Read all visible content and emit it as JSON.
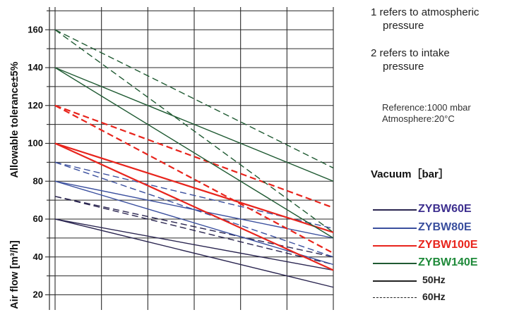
{
  "chart_data": {
    "type": "line",
    "ylabel_top": "Allowable tolerance±5%",
    "ylabel_bottom": "Air flow [m³/h]",
    "yticks": [
      20,
      40,
      60,
      80,
      100,
      120,
      140,
      160
    ],
    "ylim": [
      12,
      172
    ],
    "x_columns": 6,
    "xlim": [
      0,
      6
    ],
    "grid": true,
    "colors": {
      "ZYBW60E": "#2a2550",
      "ZYBW80E": "#3a4f9e",
      "ZYBW100E": "#e8241c",
      "ZYBW140E": "#1f5a32"
    },
    "series": [
      {
        "name": "ZYBW60E",
        "freq": "50Hz",
        "ref": "1",
        "x": [
          0,
          6
        ],
        "y": [
          60,
          24
        ]
      },
      {
        "name": "ZYBW60E",
        "freq": "60Hz",
        "ref": "1",
        "x": [
          0,
          6
        ],
        "y": [
          72,
          36
        ]
      },
      {
        "name": "ZYBW60E",
        "freq": "50Hz",
        "ref": "2",
        "x": [
          0,
          6
        ],
        "y": [
          60,
          33
        ]
      },
      {
        "name": "ZYBW60E",
        "freq": "60Hz",
        "ref": "2",
        "x": [
          0,
          6
        ],
        "y": [
          72,
          40
        ]
      },
      {
        "name": "ZYBW80E",
        "freq": "50Hz",
        "ref": "1",
        "x": [
          0,
          6
        ],
        "y": [
          80,
          50
        ]
      },
      {
        "name": "ZYBW80E",
        "freq": "60Hz",
        "ref": "1",
        "x": [
          0,
          6
        ],
        "y": [
          90,
          55
        ]
      },
      {
        "name": "ZYBW80E",
        "freq": "50Hz",
        "ref": "2",
        "x": [
          0,
          6
        ],
        "y": [
          80,
          36
        ]
      },
      {
        "name": "ZYBW80E",
        "freq": "60Hz",
        "ref": "2",
        "x": [
          0,
          6
        ],
        "y": [
          90,
          40
        ]
      },
      {
        "name": "ZYBW100E",
        "freq": "50Hz",
        "ref": "1",
        "x": [
          0,
          6
        ],
        "y": [
          100,
          53
        ]
      },
      {
        "name": "ZYBW100E",
        "freq": "60Hz",
        "ref": "1",
        "x": [
          0,
          6
        ],
        "y": [
          120,
          66
        ]
      },
      {
        "name": "ZYBW100E",
        "freq": "50Hz",
        "ref": "2",
        "x": [
          0,
          6
        ],
        "y": [
          100,
          33
        ]
      },
      {
        "name": "ZYBW100E",
        "freq": "60Hz",
        "ref": "2",
        "x": [
          0,
          6
        ],
        "y": [
          120,
          42
        ]
      },
      {
        "name": "ZYBW140E",
        "freq": "50Hz",
        "ref": "1",
        "x": [
          0,
          6
        ],
        "y": [
          140,
          80
        ]
      },
      {
        "name": "ZYBW140E",
        "freq": "60Hz",
        "ref": "1",
        "x": [
          0,
          6
        ],
        "y": [
          160,
          87
        ]
      },
      {
        "name": "ZYBW140E",
        "freq": "50Hz",
        "ref": "2",
        "x": [
          0,
          6
        ],
        "y": [
          140,
          50
        ]
      },
      {
        "name": "ZYBW140E",
        "freq": "60Hz",
        "ref": "2",
        "x": [
          0,
          6
        ],
        "y": [
          160,
          53
        ]
      }
    ]
  },
  "notes": {
    "note1_line1": "1 refers to atmospheric",
    "note1_line2": "pressure",
    "note2_line1": "2 refers to intake",
    "note2_line2": "pressure",
    "reference": "Reference:1000 mbar",
    "atmosphere": "Atmosphere:20°C"
  },
  "legend": {
    "title": "Vacuum［bar］",
    "items": [
      {
        "label": "ZYBW60E",
        "color": "#3d2f8f",
        "line": "#2a2550",
        "style": "solid"
      },
      {
        "label": "ZYBW80E",
        "color": "#3a4f9e",
        "line": "#3a4f9e",
        "style": "solid"
      },
      {
        "label": "ZYBW100E",
        "color": "#e8241c",
        "line": "#e8241c",
        "style": "solid"
      },
      {
        "label": "ZYBW140E",
        "color": "#1f8a3a",
        "line": "#1f5a32",
        "style": "solid"
      },
      {
        "label": "50Hz",
        "color": "#222222",
        "line": "#222222",
        "style": "solid"
      },
      {
        "label": "60Hz",
        "color": "#222222",
        "line": "#222222",
        "style": "dashed"
      }
    ]
  }
}
